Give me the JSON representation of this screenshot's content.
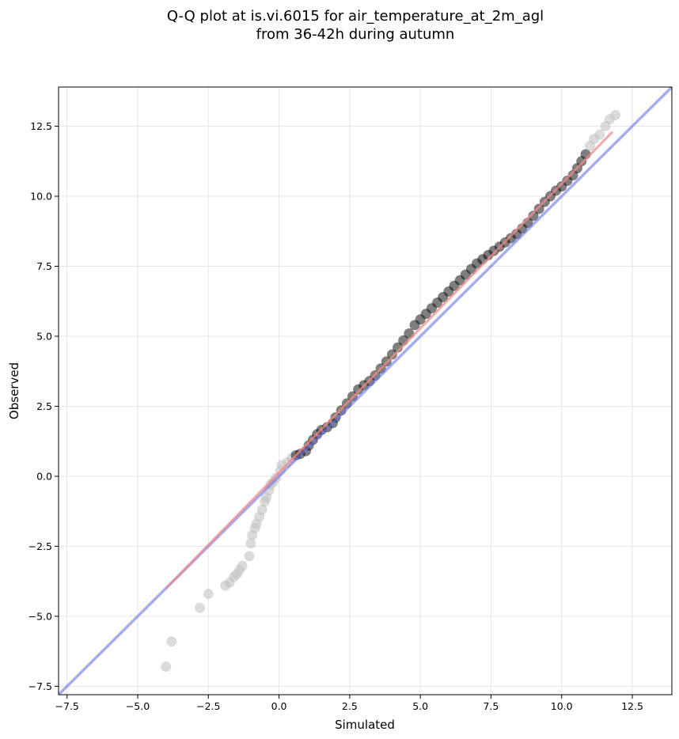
{
  "chart_data": {
    "type": "scatter",
    "title": "Q-Q plot at is.vi.6015 for air_temperature_at_2m_agl",
    "subtitle": "from 36-42h during autumn",
    "xlabel": "Simulated",
    "ylabel": "Observed",
    "xlim": [
      -7.8,
      13.9
    ],
    "ylim": [
      -7.8,
      13.9
    ],
    "xticks": [
      -7.5,
      -5.0,
      -2.5,
      0.0,
      2.5,
      5.0,
      7.5,
      10.0,
      12.5
    ],
    "yticks": [
      -7.5,
      -5.0,
      -2.5,
      0.0,
      2.5,
      5.0,
      7.5,
      10.0,
      12.5
    ],
    "xtick_labels": [
      "−7.5",
      "−5.0",
      "−2.5",
      "0.0",
      "2.5",
      "5.0",
      "7.5",
      "10.0",
      "12.5"
    ],
    "ytick_labels": [
      "−7.5",
      "−5.0",
      "−2.5",
      "0.0",
      "2.5",
      "5.0",
      "7.5",
      "10.0",
      "12.5"
    ],
    "grid": true,
    "colors": {
      "points": "#000000",
      "identity_line": "#6b73ea",
      "fit_line": "#f08a8a",
      "tail_points": "#bdbdbd"
    },
    "identity_line": {
      "from": [
        -7.8,
        -7.8
      ],
      "to": [
        13.9,
        13.9
      ]
    },
    "fit_line": {
      "from": [
        -4.0,
        -4.0
      ],
      "to": [
        11.8,
        12.3
      ]
    },
    "series": [
      {
        "points": [
          [
            -4.0,
            -6.8
          ],
          [
            -3.8,
            -5.9
          ],
          [
            -2.8,
            -4.7
          ],
          [
            -2.5,
            -4.2
          ],
          [
            -1.9,
            -3.9
          ],
          [
            -1.75,
            -3.8
          ],
          [
            -1.6,
            -3.6
          ],
          [
            -1.5,
            -3.5
          ],
          [
            -1.4,
            -3.35
          ],
          [
            -1.3,
            -3.2
          ],
          [
            -1.05,
            -2.85
          ],
          [
            -1.0,
            -2.4
          ],
          [
            -0.95,
            -2.1
          ],
          [
            -0.85,
            -1.85
          ],
          [
            -0.8,
            -1.7
          ],
          [
            -0.7,
            -1.45
          ],
          [
            -0.6,
            -1.2
          ],
          [
            -0.5,
            -0.9
          ],
          [
            -0.45,
            -0.75
          ],
          [
            -0.35,
            -0.5
          ],
          [
            -0.3,
            -0.3
          ],
          [
            -0.2,
            -0.2
          ],
          [
            -0.1,
            -0.05
          ],
          [
            0.05,
            0.2
          ],
          [
            0.1,
            0.4
          ],
          [
            0.3,
            0.5
          ],
          [
            0.45,
            0.65
          ],
          [
            0.6,
            0.75
          ],
          [
            0.75,
            0.8
          ],
          [
            0.95,
            0.9
          ],
          [
            1.05,
            1.1
          ],
          [
            1.2,
            1.3
          ],
          [
            1.35,
            1.5
          ],
          [
            1.5,
            1.65
          ],
          [
            1.7,
            1.75
          ],
          [
            1.9,
            1.9
          ],
          [
            2.0,
            2.1
          ],
          [
            2.2,
            2.35
          ],
          [
            2.4,
            2.6
          ],
          [
            2.6,
            2.85
          ],
          [
            2.8,
            3.1
          ],
          [
            3.0,
            3.25
          ],
          [
            3.2,
            3.4
          ],
          [
            3.4,
            3.6
          ],
          [
            3.6,
            3.85
          ],
          [
            3.8,
            4.1
          ],
          [
            4.0,
            4.35
          ],
          [
            4.2,
            4.6
          ],
          [
            4.4,
            4.85
          ],
          [
            4.6,
            5.1
          ],
          [
            4.8,
            5.4
          ],
          [
            5.0,
            5.6
          ],
          [
            5.2,
            5.8
          ],
          [
            5.4,
            6.0
          ],
          [
            5.6,
            6.2
          ],
          [
            5.8,
            6.4
          ],
          [
            6.0,
            6.6
          ],
          [
            6.2,
            6.8
          ],
          [
            6.4,
            7.0
          ],
          [
            6.6,
            7.2
          ],
          [
            6.8,
            7.4
          ],
          [
            7.0,
            7.6
          ],
          [
            7.2,
            7.75
          ],
          [
            7.4,
            7.9
          ],
          [
            7.6,
            8.05
          ],
          [
            7.8,
            8.2
          ],
          [
            8.0,
            8.35
          ],
          [
            8.2,
            8.5
          ],
          [
            8.4,
            8.65
          ],
          [
            8.6,
            8.85
          ],
          [
            8.8,
            9.05
          ],
          [
            9.0,
            9.3
          ],
          [
            9.2,
            9.55
          ],
          [
            9.4,
            9.8
          ],
          [
            9.6,
            10.0
          ],
          [
            9.8,
            10.2
          ],
          [
            10.0,
            10.35
          ],
          [
            10.2,
            10.55
          ],
          [
            10.4,
            10.75
          ],
          [
            10.55,
            11.0
          ],
          [
            10.7,
            11.25
          ],
          [
            10.85,
            11.5
          ],
          [
            11.0,
            11.8
          ],
          [
            11.15,
            12.05
          ],
          [
            11.35,
            12.2
          ],
          [
            11.55,
            12.5
          ],
          [
            11.7,
            12.75
          ],
          [
            11.9,
            12.9
          ]
        ]
      }
    ]
  }
}
